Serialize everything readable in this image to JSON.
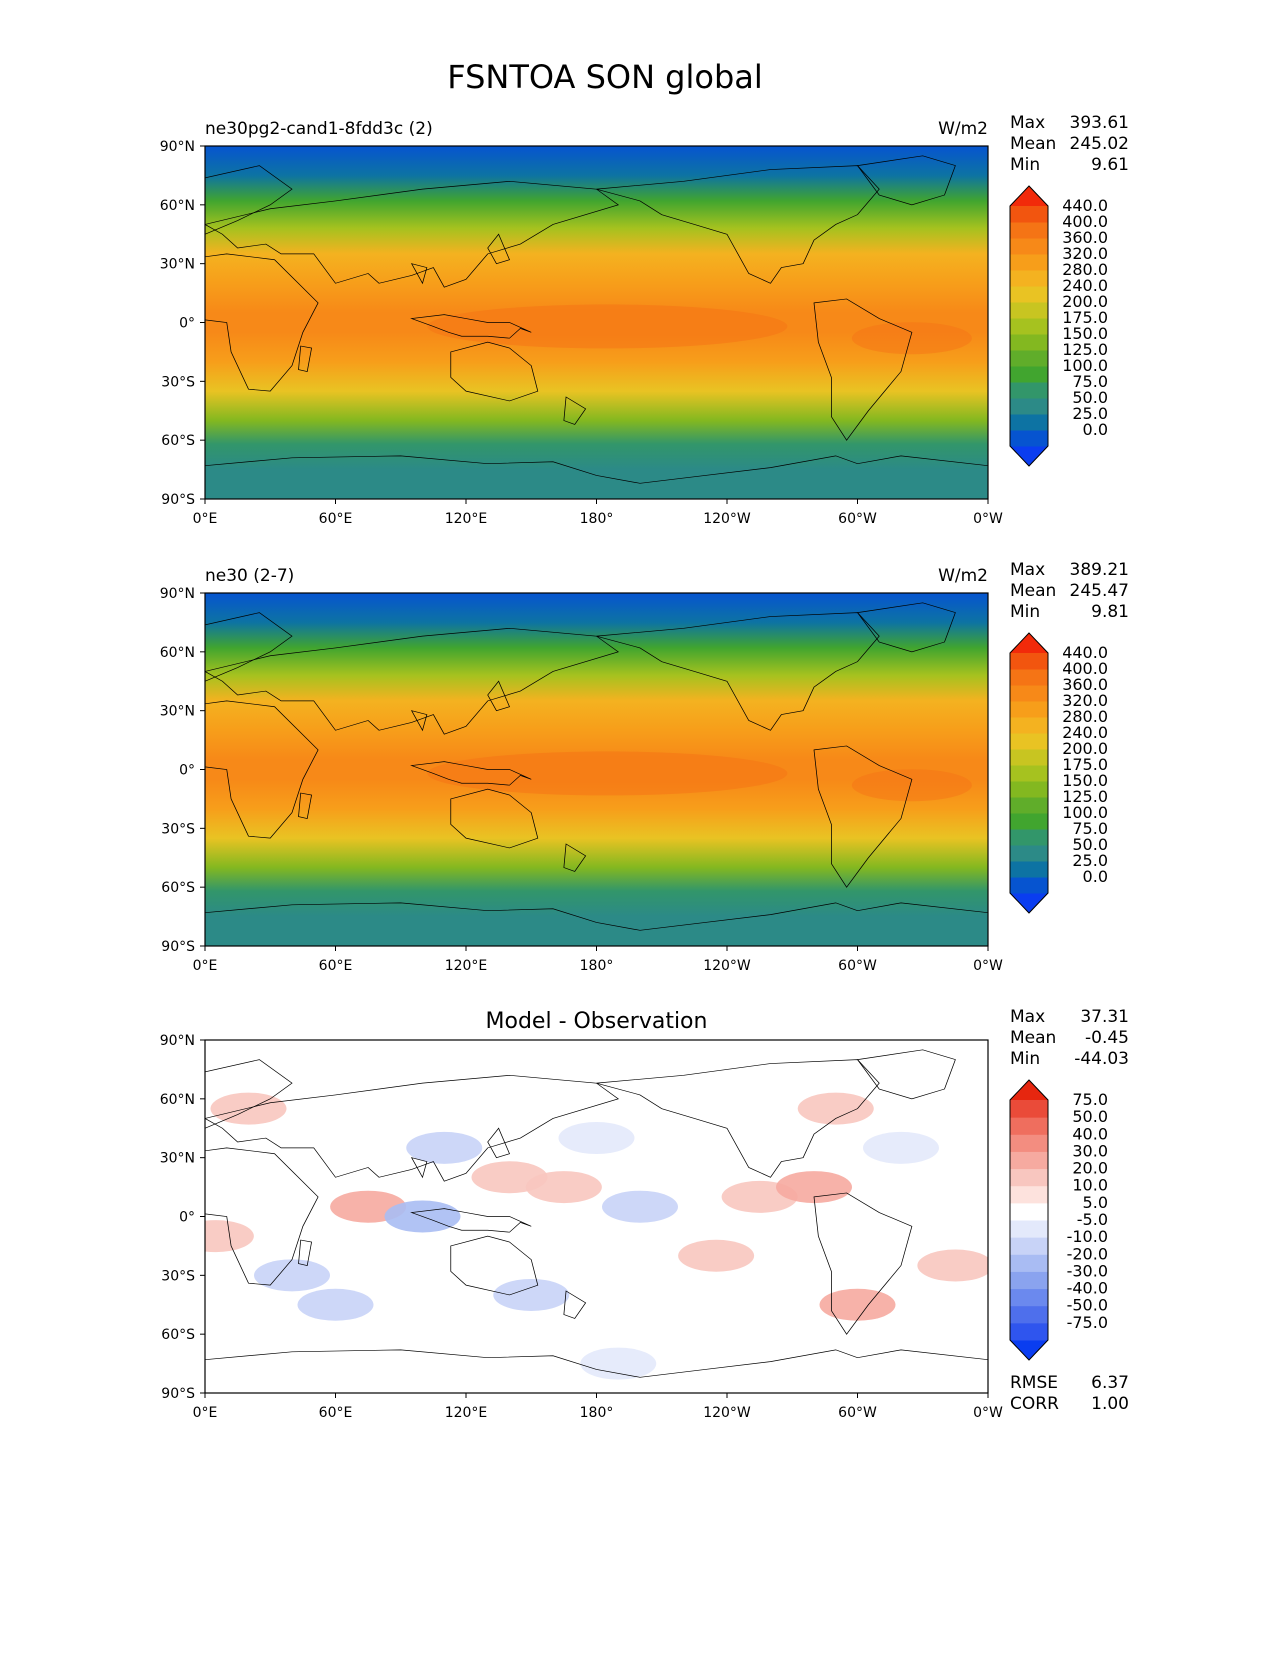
{
  "figure": {
    "title": "FSNTOA SON global"
  },
  "colors": {
    "abs_levels": [
      "#0a3df0",
      "#0654d0",
      "#0d73a3",
      "#2c8a87",
      "#32966a",
      "#41a52f",
      "#60ad2a",
      "#83b820",
      "#a6c21f",
      "#c8c521",
      "#e9c323",
      "#f4b220",
      "#f79e1a",
      "#f78918",
      "#f57415",
      "#f2550f",
      "#f22a0a"
    ],
    "diff_levels": [
      "#0a3df0",
      "#2f55ee",
      "#4e6fec",
      "#6b89ee",
      "#8aa3ef",
      "#a9bcf3",
      "#c8d3f7",
      "#e3e9fb",
      "#ffffff",
      "#fde2dd",
      "#f8c6bf",
      "#f6aaa0",
      "#f38d80",
      "#ef6e5e",
      "#ea4b39",
      "#e6260f"
    ],
    "land_line": "#000000"
  },
  "chart_data": [
    {
      "type": "heatmap",
      "panel": "test",
      "label": "ne30pg2-cand1-8fdd3c (2)",
      "units": "W/m2",
      "stats": {
        "max": "393.61",
        "mean": "245.02",
        "min": "9.61"
      },
      "stats_labels": {
        "max": "Max",
        "mean": "Mean",
        "min": "Min"
      },
      "lat_ticks": [
        "90°N",
        "60°N",
        "30°N",
        "0°",
        "30°S",
        "60°S",
        "90°S"
      ],
      "lon_ticks": [
        "0°E",
        "60°E",
        "120°E",
        "180°",
        "120°W",
        "60°W",
        "0°W"
      ],
      "colorbar_levels": [
        "0.0",
        "25.0",
        "50.0",
        "75.0",
        "100.0",
        "125.0",
        "150.0",
        "175.0",
        "200.0",
        "240.0",
        "280.0",
        "320.0",
        "360.0",
        "400.0",
        "440.0"
      ],
      "zonal_profile": [
        {
          "lat": 90,
          "level": 1
        },
        {
          "lat": 75,
          "level": 2
        },
        {
          "lat": 62,
          "level": 5
        },
        {
          "lat": 48,
          "level": 8
        },
        {
          "lat": 35,
          "level": 11
        },
        {
          "lat": 20,
          "level": 12
        },
        {
          "lat": 5,
          "level": 13
        },
        {
          "lat": -5,
          "level": 13
        },
        {
          "lat": -20,
          "level": 12
        },
        {
          "lat": -35,
          "level": 10
        },
        {
          "lat": -50,
          "level": 7
        },
        {
          "lat": -62,
          "level": 4
        },
        {
          "lat": -75,
          "level": 3
        },
        {
          "lat": -90,
          "level": 3
        }
      ]
    },
    {
      "type": "heatmap",
      "panel": "reference",
      "label": "ne30 (2-7)",
      "units": "W/m2",
      "stats": {
        "max": "389.21",
        "mean": "245.47",
        "min": "9.81"
      },
      "stats_labels": {
        "max": "Max",
        "mean": "Mean",
        "min": "Min"
      },
      "lat_ticks": [
        "90°N",
        "60°N",
        "30°N",
        "0°",
        "30°S",
        "60°S",
        "90°S"
      ],
      "lon_ticks": [
        "0°E",
        "60°E",
        "120°E",
        "180°",
        "120°W",
        "60°W",
        "0°W"
      ],
      "colorbar_levels": [
        "0.0",
        "25.0",
        "50.0",
        "75.0",
        "100.0",
        "125.0",
        "150.0",
        "175.0",
        "200.0",
        "240.0",
        "280.0",
        "320.0",
        "360.0",
        "400.0",
        "440.0"
      ],
      "zonal_profile": [
        {
          "lat": 90,
          "level": 1
        },
        {
          "lat": 75,
          "level": 2
        },
        {
          "lat": 62,
          "level": 5
        },
        {
          "lat": 48,
          "level": 8
        },
        {
          "lat": 35,
          "level": 11
        },
        {
          "lat": 20,
          "level": 12
        },
        {
          "lat": 5,
          "level": 13
        },
        {
          "lat": -5,
          "level": 13
        },
        {
          "lat": -20,
          "level": 12
        },
        {
          "lat": -35,
          "level": 10
        },
        {
          "lat": -50,
          "level": 7
        },
        {
          "lat": -62,
          "level": 4
        },
        {
          "lat": -75,
          "level": 3
        },
        {
          "lat": -90,
          "level": 3
        }
      ]
    },
    {
      "type": "heatmap",
      "panel": "difference",
      "title": "Model - Observation",
      "stats": {
        "max": "37.31",
        "mean": "-0.45",
        "min": "-44.03"
      },
      "stats_labels": {
        "max": "Max",
        "mean": "Mean",
        "min": "Min"
      },
      "metrics": {
        "rmse": "6.37",
        "corr": "1.00"
      },
      "metrics_labels": {
        "rmse": "RMSE",
        "corr": "CORR"
      },
      "lat_ticks": [
        "90°N",
        "60°N",
        "30°N",
        "0°",
        "30°S",
        "60°S",
        "90°S"
      ],
      "lon_ticks": [
        "0°E",
        "60°E",
        "120°E",
        "180°",
        "120°W",
        "60°W",
        "0°W"
      ],
      "colorbar_levels": [
        "-75.0",
        "-50.0",
        "-40.0",
        "-30.0",
        "-20.0",
        "-10.0",
        "-5.0",
        "5.0",
        "10.0",
        "20.0",
        "30.0",
        "40.0",
        "50.0",
        "75.0"
      ],
      "anomalies": [
        {
          "lon": 20,
          "lat": 55,
          "value": 12
        },
        {
          "lon": 75,
          "lat": 5,
          "value": 15
        },
        {
          "lon": 100,
          "lat": 0,
          "value": -18
        },
        {
          "lon": 110,
          "lat": 35,
          "value": -14
        },
        {
          "lon": 140,
          "lat": 20,
          "value": 12
        },
        {
          "lon": 165,
          "lat": 15,
          "value": 14
        },
        {
          "lon": 200,
          "lat": 5,
          "value": -12
        },
        {
          "lon": 255,
          "lat": 10,
          "value": 13
        },
        {
          "lon": 280,
          "lat": 15,
          "value": 16
        },
        {
          "lon": 290,
          "lat": 55,
          "value": 12
        },
        {
          "lon": 235,
          "lat": -20,
          "value": 12
        },
        {
          "lon": 300,
          "lat": -45,
          "value": 15
        },
        {
          "lon": 345,
          "lat": -25,
          "value": 14
        },
        {
          "lon": 60,
          "lat": -45,
          "value": -12
        },
        {
          "lon": 150,
          "lat": -40,
          "value": -10
        },
        {
          "lon": 190,
          "lat": -75,
          "value": -8
        },
        {
          "lon": 40,
          "lat": -30,
          "value": -10
        },
        {
          "lon": 320,
          "lat": 35,
          "value": -9
        },
        {
          "lon": 180,
          "lat": 40,
          "value": -8
        },
        {
          "lon": 5,
          "lat": -10,
          "value": 11
        }
      ]
    }
  ]
}
